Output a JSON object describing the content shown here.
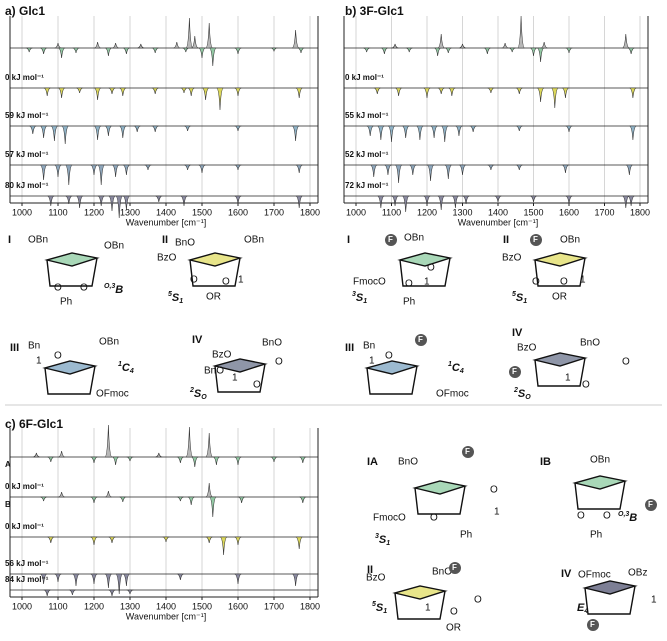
{
  "panels": [
    {
      "title": "a) Glc1",
      "xlabel": "Wavenumber [cm⁻¹]",
      "xlim": [
        1000,
        1800
      ],
      "xticks": [
        1000,
        1100,
        1200,
        1300,
        1400,
        1500,
        1600,
        1700,
        1800
      ],
      "traces": [
        {
          "color": "#b8b8b8",
          "neg_color": "#93c9a4",
          "peaks": [
            [
              1020,
              -4
            ],
            [
              1060,
              -6
            ],
            [
              1100,
              5
            ],
            [
              1110,
              -10
            ],
            [
              1150,
              -5
            ],
            [
              1210,
              6
            ],
            [
              1240,
              -8
            ],
            [
              1260,
              5
            ],
            [
              1290,
              -6
            ],
            [
              1330,
              4
            ],
            [
              1370,
              -5
            ],
            [
              1430,
              6
            ],
            [
              1455,
              -4
            ],
            [
              1465,
              30
            ],
            [
              1480,
              12
            ],
            [
              1500,
              -10
            ],
            [
              1520,
              25
            ],
            [
              1530,
              -18
            ],
            [
              1600,
              -6
            ],
            [
              1700,
              -3
            ],
            [
              1760,
              18
            ],
            [
              1775,
              -5
            ]
          ]
        },
        {
          "label": "0 kJ mol⁻¹",
          "color": "#dcd85a",
          "peaks": [
            [
              1070,
              -8
            ],
            [
              1110,
              -10
            ],
            [
              1160,
              -5
            ],
            [
              1210,
              -12
            ],
            [
              1250,
              -6
            ],
            [
              1280,
              -8
            ],
            [
              1370,
              -6
            ],
            [
              1450,
              -5
            ],
            [
              1470,
              -8
            ],
            [
              1510,
              -12
            ],
            [
              1550,
              -22
            ],
            [
              1600,
              -8
            ],
            [
              1770,
              -10
            ]
          ]
        },
        {
          "label": "59 kJ mol⁻¹",
          "color": "#8fb2c6",
          "peaks": [
            [
              1030,
              -8
            ],
            [
              1060,
              -12
            ],
            [
              1090,
              -15
            ],
            [
              1120,
              -18
            ],
            [
              1210,
              -14
            ],
            [
              1240,
              -10
            ],
            [
              1280,
              -12
            ],
            [
              1320,
              -6
            ],
            [
              1370,
              -6
            ],
            [
              1460,
              -5
            ],
            [
              1600,
              -5
            ],
            [
              1760,
              -15
            ]
          ]
        },
        {
          "label": "57 kJ mol⁻¹",
          "color": "#8ea6bb",
          "peaks": [
            [
              1060,
              -15
            ],
            [
              1100,
              -12
            ],
            [
              1130,
              -20
            ],
            [
              1200,
              -10
            ],
            [
              1220,
              -20
            ],
            [
              1260,
              -12
            ],
            [
              1290,
              -10
            ],
            [
              1350,
              -5
            ],
            [
              1460,
              -5
            ],
            [
              1500,
              -8
            ],
            [
              1600,
              -5
            ],
            [
              1770,
              -8
            ]
          ]
        },
        {
          "label": "80 kJ mol⁻¹",
          "color": "#8a8aa0",
          "peaks": [
            [
              1080,
              -10
            ],
            [
              1130,
              -8
            ],
            [
              1160,
              -12
            ],
            [
              1220,
              -10
            ],
            [
              1250,
              -15
            ],
            [
              1270,
              -22
            ],
            [
              1290,
              -14
            ],
            [
              1380,
              -6
            ],
            [
              1450,
              -10
            ],
            [
              1600,
              -8
            ],
            [
              1770,
              -12
            ]
          ]
        }
      ],
      "structures": [
        {
          "numeral": "I",
          "groups": [
            "OBn",
            "OBn",
            "O",
            "O",
            "Ph"
          ],
          "conformer": {
            "sup": "O,3",
            "main": "B"
          }
        },
        {
          "numeral": "II",
          "groups": [
            "BnO",
            "OBn",
            "BzO",
            "O",
            "O",
            "1",
            "OR"
          ],
          "conformer": {
            "sup": "5",
            "main": "S",
            "sub": "1"
          }
        },
        {
          "numeral": "III",
          "groups": [
            "Bn",
            "O",
            "1",
            "OBn",
            "OFmoc"
          ],
          "conformer": {
            "sup": "1",
            "main": "C",
            "sub": "4"
          }
        },
        {
          "numeral": "IV",
          "groups": [
            "BzO",
            "BnO",
            "BnO",
            "O",
            "1",
            "O"
          ],
          "conformer": {
            "sup": "2",
            "main": "S",
            "sub": "O"
          }
        }
      ]
    },
    {
      "title": "b) 3F-Glc1",
      "xlabel": "Wavenumber [cm⁻¹]",
      "xlim": [
        1000,
        1800
      ],
      "xticks": [
        1000,
        1100,
        1200,
        1300,
        1400,
        1500,
        1600,
        1700,
        1800
      ],
      "traces": [
        {
          "color": "#b8b8b8",
          "neg_color": "#93c9a4",
          "peaks": [
            [
              1030,
              -4
            ],
            [
              1080,
              -6
            ],
            [
              1110,
              4
            ],
            [
              1150,
              -4
            ],
            [
              1230,
              -8
            ],
            [
              1240,
              14
            ],
            [
              1260,
              -5
            ],
            [
              1300,
              4
            ],
            [
              1370,
              -6
            ],
            [
              1420,
              5
            ],
            [
              1440,
              -4
            ],
            [
              1465,
              32
            ],
            [
              1500,
              -8
            ],
            [
              1520,
              -14
            ],
            [
              1530,
              6
            ],
            [
              1600,
              -5
            ],
            [
              1760,
              14
            ],
            [
              1775,
              -6
            ]
          ]
        },
        {
          "label": "0 kJ mol⁻¹",
          "color": "#dcd85a",
          "peaks": [
            [
              1060,
              -6
            ],
            [
              1120,
              -8
            ],
            [
              1200,
              -10
            ],
            [
              1240,
              -6
            ],
            [
              1270,
              -8
            ],
            [
              1380,
              -5
            ],
            [
              1460,
              -6
            ],
            [
              1520,
              -14
            ],
            [
              1560,
              -20
            ],
            [
              1590,
              -10
            ],
            [
              1780,
              -10
            ]
          ]
        },
        {
          "label": "55 kJ mol⁻¹",
          "color": "#8fb2c6",
          "peaks": [
            [
              1040,
              -10
            ],
            [
              1070,
              -14
            ],
            [
              1100,
              -16
            ],
            [
              1140,
              -12
            ],
            [
              1180,
              -14
            ],
            [
              1220,
              -12
            ],
            [
              1250,
              -16
            ],
            [
              1290,
              -10
            ],
            [
              1330,
              -6
            ],
            [
              1460,
              -5
            ],
            [
              1600,
              -6
            ],
            [
              1780,
              -14
            ]
          ]
        },
        {
          "label": "52 kJ mol⁻¹",
          "color": "#8ea6bb",
          "peaks": [
            [
              1050,
              -12
            ],
            [
              1090,
              -10
            ],
            [
              1120,
              -18
            ],
            [
              1160,
              -10
            ],
            [
              1210,
              -16
            ],
            [
              1260,
              -14
            ],
            [
              1300,
              -10
            ],
            [
              1380,
              -5
            ],
            [
              1460,
              -5
            ],
            [
              1590,
              -8
            ],
            [
              1770,
              -10
            ]
          ]
        },
        {
          "label": "72 kJ mol⁻¹",
          "color": "#8a8aa0",
          "peaks": [
            [
              1070,
              -12
            ],
            [
              1110,
              -10
            ],
            [
              1140,
              -16
            ],
            [
              1200,
              -10
            ],
            [
              1240,
              -14
            ],
            [
              1280,
              -12
            ],
            [
              1310,
              -8
            ],
            [
              1400,
              -6
            ],
            [
              1500,
              -6
            ],
            [
              1600,
              -8
            ],
            [
              1760,
              -12
            ],
            [
              1775,
              -10
            ]
          ]
        }
      ],
      "structures": [
        {
          "numeral": "I",
          "groups": [
            "F",
            "OBn",
            "FmocO",
            "O",
            "O",
            "1",
            "Ph"
          ],
          "conformer": {
            "sup": "3",
            "main": "S",
            "sub": "1"
          }
        },
        {
          "numeral": "II",
          "groups": [
            "F",
            "OBn",
            "BzO",
            "O",
            "O",
            "1",
            "OR"
          ],
          "conformer": {
            "sup": "5",
            "main": "S",
            "sub": "1"
          }
        },
        {
          "numeral": "III",
          "groups": [
            "Bn",
            "O",
            "1",
            "F",
            "OFmoc"
          ],
          "conformer": {
            "sup": "1",
            "main": "C",
            "sub": "4"
          }
        },
        {
          "numeral": "IV",
          "groups": [
            "BzO",
            "BnO",
            "F",
            "O",
            "1",
            "O"
          ],
          "conformer": {
            "sup": "2",
            "main": "S",
            "sub": "O"
          }
        }
      ]
    },
    {
      "title": "c) 6F-Glc1",
      "xlabel": "Wavenumber [cm⁻¹]",
      "xlim": [
        1000,
        1800
      ],
      "xticks": [
        1000,
        1100,
        1200,
        1300,
        1400,
        1500,
        1600,
        1700,
        1800
      ],
      "traces": [
        {
          "tag": "A",
          "color": "#b8b8b8",
          "neg_color": "#93c9a4",
          "peaks": [
            [
              1040,
              4
            ],
            [
              1080,
              -5
            ],
            [
              1110,
              6
            ],
            [
              1200,
              -6
            ],
            [
              1240,
              32
            ],
            [
              1260,
              -8
            ],
            [
              1300,
              -4
            ],
            [
              1380,
              4
            ],
            [
              1440,
              -6
            ],
            [
              1465,
              30
            ],
            [
              1480,
              -10
            ],
            [
              1520,
              24
            ],
            [
              1540,
              -8
            ],
            [
              1600,
              -8
            ],
            [
              1700,
              -5
            ],
            [
              1780,
              -6
            ]
          ]
        },
        {
          "tag": "B",
          "label": "0 kJ mol⁻¹",
          "color": "#b8b8b8",
          "neg_color": "#93c9a4",
          "peaks": [
            [
              1060,
              -4
            ],
            [
              1110,
              5
            ],
            [
              1200,
              -6
            ],
            [
              1240,
              6
            ],
            [
              1280,
              -5
            ],
            [
              1440,
              -4
            ],
            [
              1470,
              -8
            ],
            [
              1520,
              14
            ],
            [
              1530,
              -20
            ],
            [
              1610,
              -6
            ],
            [
              1780,
              -6
            ]
          ]
        },
        {
          "label": "0 kJ mol⁻¹",
          "color": "#dcd85a",
          "peaks": [
            [
              1080,
              -6
            ],
            [
              1200,
              -8
            ],
            [
              1250,
              -6
            ],
            [
              1400,
              -5
            ],
            [
              1520,
              -6
            ],
            [
              1560,
              -18
            ],
            [
              1600,
              -8
            ],
            [
              1770,
              -12
            ]
          ]
        },
        {
          "label": "56 kJ mol⁻¹",
          "color": "#8a8aa0",
          "peaks": [
            [
              1060,
              -10
            ],
            [
              1100,
              -8
            ],
            [
              1150,
              -12
            ],
            [
              1200,
              -10
            ],
            [
              1240,
              -14
            ],
            [
              1270,
              -20
            ],
            [
              1290,
              -12
            ],
            [
              1440,
              -6
            ],
            [
              1600,
              -10
            ],
            [
              1760,
              -12
            ]
          ]
        },
        {
          "label": "84 kJ mol⁻¹",
          "color": "#8a8aa0",
          "peaks": [
            [
              1070,
              -6
            ],
            [
              1140,
              -5
            ],
            [
              1250,
              -6
            ],
            [
              1300,
              -4
            ]
          ]
        }
      ],
      "structures": [
        {
          "numeral": "IA",
          "groups": [
            "BnO",
            "F",
            "O",
            "FmocO",
            "O",
            "1",
            "Ph"
          ],
          "conformer": {
            "sup": "3",
            "main": "S",
            "sub": "1"
          }
        },
        {
          "numeral": "IB",
          "groups": [
            "OBn",
            "F",
            "O",
            "O",
            "Ph"
          ],
          "conformer": {
            "sup": "O,3",
            "main": "B"
          }
        },
        {
          "numeral": "II",
          "groups": [
            "BzO",
            "BnO",
            "F",
            "O",
            "1",
            "O",
            "OR"
          ],
          "conformer": {
            "sup": "5",
            "main": "S",
            "sub": "1"
          }
        },
        {
          "numeral": "IV",
          "groups": [
            "OFmoc",
            "OBz",
            "1",
            "F"
          ],
          "conformer": {
            "main": "E",
            "sub": "4"
          }
        }
      ]
    }
  ]
}
